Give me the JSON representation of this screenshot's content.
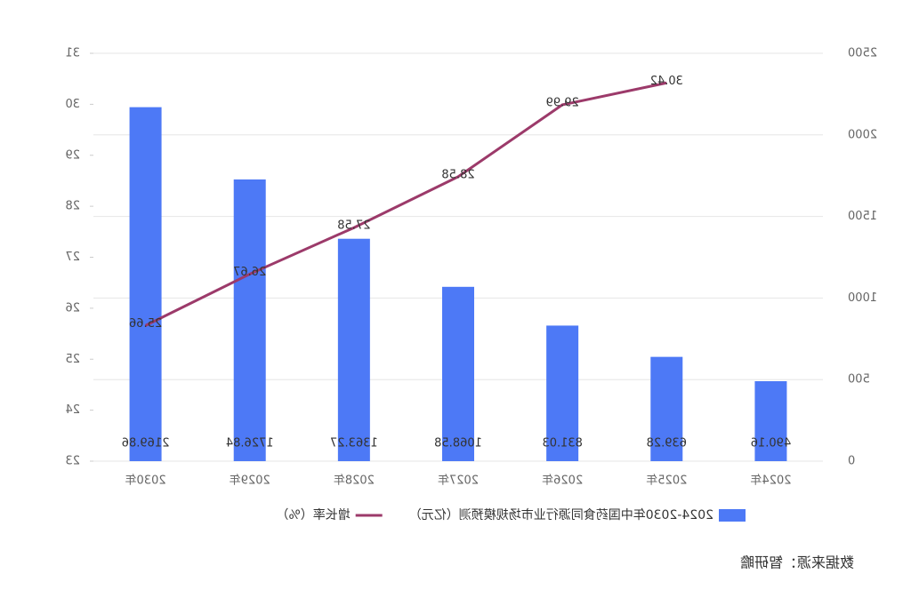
{
  "chart_data": {
    "type": "bar_line",
    "mirrored": true,
    "categories": [
      "2024年",
      "2025年",
      "2026年",
      "2027年",
      "2028年",
      "2029年",
      "2030年"
    ],
    "series": [
      {
        "name": "2024-2030年中国药食同源行业市场规模预测（亿元）",
        "type": "bar",
        "color": "#4d79f6",
        "values": [
          490.16,
          639.28,
          831.03,
          1068.58,
          1363.27,
          1726.84,
          2169.86
        ]
      },
      {
        "name": "增长率（%）",
        "type": "line",
        "axis": "y2",
        "color": "#9c3a6a",
        "values": [
          null,
          30.42,
          29.99,
          28.58,
          27.58,
          26.67,
          25.66
        ]
      }
    ],
    "ylim": [
      0,
      2500
    ],
    "yticks": [
      0,
      500,
      1000,
      1500,
      2000,
      2500
    ],
    "y2lim": [
      23,
      31
    ],
    "y2ticks": [
      23,
      24,
      25,
      26,
      27,
      28,
      29,
      30,
      31
    ],
    "grid": true,
    "source": "数据来源：智研瞻"
  }
}
